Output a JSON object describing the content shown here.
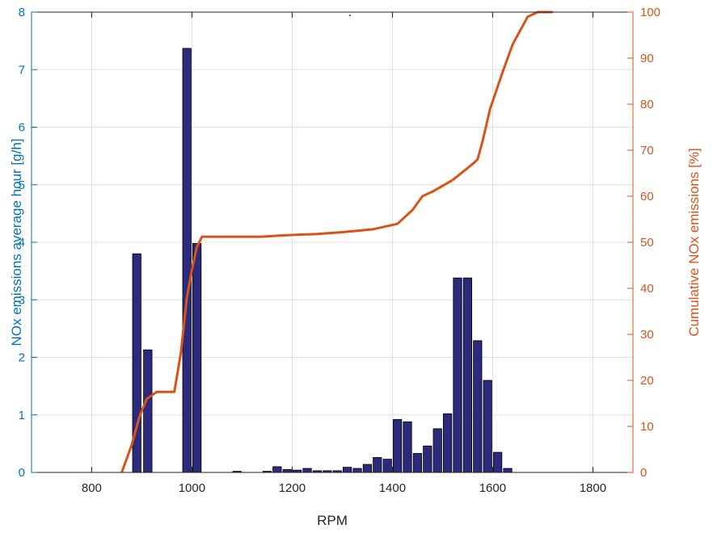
{
  "chart_data": {
    "type": "bar",
    "title": ".",
    "xlabel": "RPM",
    "ylabel_left": "NOx emissions average hour [g/h]",
    "ylabel_right": "Cumulative NOx emissions [%]",
    "xlim": [
      680,
      1880
    ],
    "ylim_left": [
      0,
      8
    ],
    "ylim_right": [
      0,
      100
    ],
    "x_ticks": [
      800,
      1000,
      1200,
      1400,
      1600,
      1800
    ],
    "y_left_ticks": [
      0,
      1,
      2,
      3,
      4,
      5,
      6,
      7,
      8
    ],
    "y_right_ticks": [
      0,
      10,
      20,
      30,
      40,
      50,
      60,
      70,
      80,
      90,
      100
    ],
    "grid": true,
    "bar_width": 20,
    "bars": {
      "name": "NOx emissions average hour [g/h]",
      "color": "#2b2a7c",
      "x": [
        890,
        912,
        990,
        1010,
        1090,
        1130,
        1150,
        1170,
        1190,
        1210,
        1230,
        1250,
        1270,
        1290,
        1310,
        1330,
        1350,
        1370,
        1390,
        1410,
        1430,
        1450,
        1470,
        1490,
        1510,
        1530,
        1550,
        1570,
        1590,
        1610,
        1630,
        1650,
        1670,
        1690,
        1710
      ],
      "values": [
        3.8,
        2.13,
        7.37,
        3.98,
        0.02,
        0,
        0.02,
        0.1,
        0.05,
        0.04,
        0.07,
        0.03,
        0.03,
        0.03,
        0.09,
        0.07,
        0.14,
        0.26,
        0.23,
        0.92,
        0.88,
        0.33,
        0.46,
        0.76,
        1.02,
        3.38,
        3.38,
        2.29,
        1.6,
        0.35,
        0.07,
        0,
        0,
        0,
        0
      ]
    },
    "cumulative": {
      "name": "Cumulative NOx emissions [%]",
      "color": "#d95319",
      "x": [
        860,
        880,
        895,
        910,
        930,
        965,
        978,
        990,
        1000,
        1010,
        1020,
        1140,
        1180,
        1250,
        1300,
        1360,
        1410,
        1440,
        1460,
        1480,
        1520,
        1560,
        1570,
        1580,
        1595,
        1620,
        1640,
        1660,
        1670,
        1690,
        1720
      ],
      "values": [
        0,
        6,
        12,
        16,
        17.5,
        17.5,
        26,
        38,
        44,
        49,
        51.2,
        51.2,
        51.5,
        51.8,
        52.2,
        52.8,
        54,
        57,
        60,
        61,
        63.5,
        67,
        68,
        72,
        79,
        87,
        93,
        97,
        99,
        100,
        100
      ]
    },
    "y_left_color": "#0072bd",
    "y_right_color": "#d95319"
  }
}
